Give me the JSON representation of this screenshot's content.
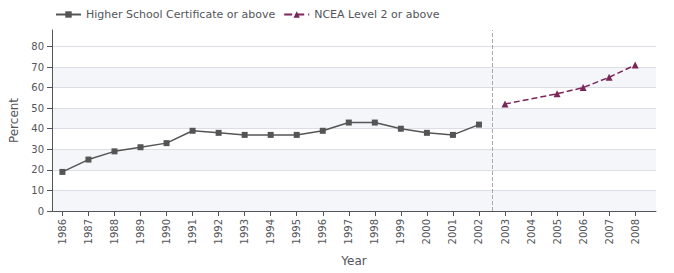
{
  "chart_data": {
    "type": "line",
    "xlabel": "Year",
    "ylabel": "Percent",
    "xlim": [
      1985.6,
      2008.8
    ],
    "xticks": [
      1986,
      1987,
      1988,
      1989,
      1990,
      1991,
      1992,
      1993,
      1994,
      1995,
      1996,
      1997,
      1998,
      1999,
      2000,
      2001,
      2002,
      2003,
      2004,
      2005,
      2006,
      2007,
      2008
    ],
    "ylim": [
      0,
      88
    ],
    "yticks": [
      0,
      10,
      20,
      30,
      40,
      50,
      60,
      70,
      80
    ],
    "grid": true,
    "legend": "upper left",
    "series": [
      {
        "name": "Higher School Certificate or above",
        "color": "#555555",
        "marker": "square",
        "line_style": "solid",
        "x": [
          1986,
          1987,
          1988,
          1989,
          1990,
          1991,
          1992,
          1993,
          1994,
          1995,
          1996,
          1997,
          1998,
          1999,
          2000,
          2001,
          2002
        ],
        "values": [
          19,
          25,
          29,
          31,
          33,
          39,
          38,
          37,
          37,
          37,
          39,
          43,
          43,
          40,
          38,
          37,
          42
        ]
      },
      {
        "name": "NCEA Level 2 or above",
        "color": "#7b2558",
        "marker": "triangle",
        "line_style": "dashed",
        "x": [
          2003,
          2005,
          2006,
          2007,
          2008
        ],
        "values": [
          52,
          57,
          60,
          65,
          71
        ]
      }
    ],
    "annotations": [
      {
        "x": 2002.5,
        "line_style": "dashed"
      }
    ]
  }
}
